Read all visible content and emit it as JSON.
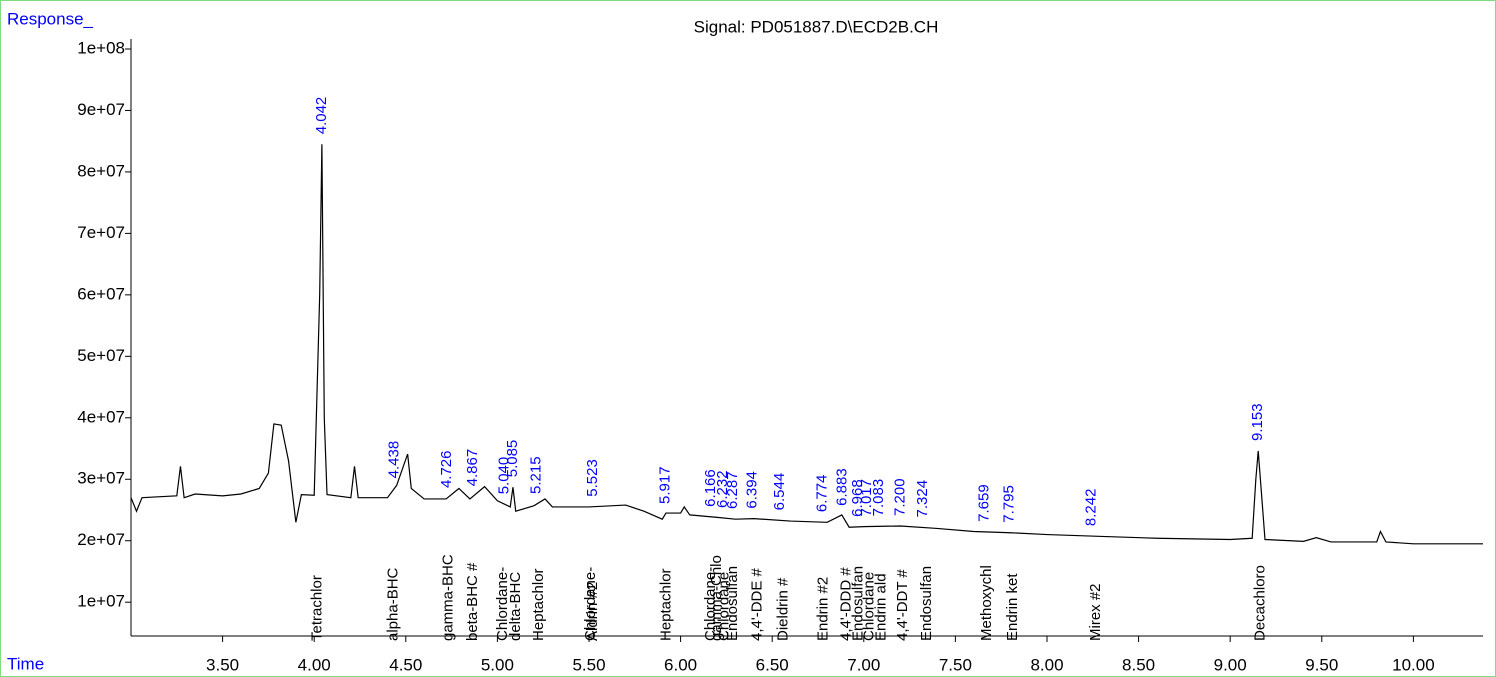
{
  "chart_data": {
    "type": "line",
    "title": "Signal: PD051887.D\\ECD2B.CH",
    "y_label": "Response_",
    "x_label": "Time",
    "xlim": [
      3.0,
      10.38
    ],
    "ylim": [
      4500000,
      101300000
    ],
    "xticks": [
      {
        "value": 3.5,
        "label": "3.50"
      },
      {
        "value": 4.0,
        "label": "4.00"
      },
      {
        "value": 4.5,
        "label": "4.50"
      },
      {
        "value": 5.0,
        "label": "5.00"
      },
      {
        "value": 5.5,
        "label": "5.50"
      },
      {
        "value": 6.0,
        "label": "6.00"
      },
      {
        "value": 6.5,
        "label": "6.50"
      },
      {
        "value": 7.0,
        "label": "7.00"
      },
      {
        "value": 7.5,
        "label": "7.50"
      },
      {
        "value": 8.0,
        "label": "8.00"
      },
      {
        "value": 8.5,
        "label": "8.50"
      },
      {
        "value": 9.0,
        "label": "9.00"
      },
      {
        "value": 9.5,
        "label": "9.50"
      },
      {
        "value": 10.0,
        "label": "10.00"
      }
    ],
    "yticks": [
      {
        "value": 10000000,
        "label": "1e+07"
      },
      {
        "value": 20000000,
        "label": "2e+07"
      },
      {
        "value": 30000000,
        "label": "3e+07"
      },
      {
        "value": 40000000,
        "label": "4e+07"
      },
      {
        "value": 50000000,
        "label": "5e+07"
      },
      {
        "value": 60000000,
        "label": "6e+07"
      },
      {
        "value": 70000000,
        "label": "7e+07"
      },
      {
        "value": 80000000,
        "label": "8e+07"
      },
      {
        "value": 90000000,
        "label": "9e+07"
      },
      {
        "value": 100000000,
        "label": "1e+08"
      }
    ],
    "series": [
      {
        "color": "#000000",
        "x": [
          3.0,
          3.03,
          3.06,
          3.25,
          3.27,
          3.29,
          3.35,
          3.5,
          3.6,
          3.7,
          3.75,
          3.78,
          3.82,
          3.86,
          3.88,
          3.9,
          3.93,
          4.0,
          4.03,
          4.042,
          4.055,
          4.07,
          4.2,
          4.22,
          4.24,
          4.4,
          4.45,
          4.51,
          4.53,
          4.6,
          4.72,
          4.79,
          4.85,
          4.93,
          5.0,
          5.07,
          5.085,
          5.1,
          5.2,
          5.26,
          5.3,
          5.5,
          5.7,
          5.8,
          5.9,
          5.92,
          6.0,
          6.02,
          6.05,
          6.2,
          6.3,
          6.4,
          6.6,
          6.8,
          6.88,
          6.92,
          7.0,
          7.2,
          7.4,
          7.6,
          7.8,
          8.0,
          8.3,
          8.6,
          9.0,
          9.12,
          9.14,
          9.153,
          9.17,
          9.19,
          9.4,
          9.47,
          9.55,
          9.8,
          9.82,
          9.85,
          10.0,
          10.38
        ],
        "values": [
          27000000,
          24800000,
          27000000,
          27300000,
          32100000,
          27000000,
          27600000,
          27300000,
          27600000,
          28500000,
          31000000,
          39000000,
          38800000,
          33000000,
          28000000,
          23000000,
          27500000,
          27400000,
          60000000,
          84500000,
          40000000,
          27500000,
          27000000,
          32100000,
          27000000,
          27000000,
          29000000,
          34100000,
          28500000,
          26800000,
          26800000,
          28500000,
          26800000,
          28800000,
          26500000,
          25500000,
          28700000,
          24800000,
          25700000,
          26800000,
          25500000,
          25500000,
          25800000,
          24800000,
          23500000,
          24500000,
          24500000,
          25500000,
          24200000,
          23800000,
          23500000,
          23600000,
          23200000,
          23000000,
          24200000,
          22200000,
          22300000,
          22400000,
          22000000,
          21500000,
          21300000,
          21000000,
          20700000,
          20400000,
          20200000,
          20400000,
          30000000,
          34600000,
          28000000,
          20200000,
          19900000,
          20500000,
          19800000,
          19800000,
          21500000,
          19800000,
          19500000,
          19500000
        ]
      }
    ],
    "peak_times": [
      {
        "value": 4.042,
        "label": "4.042"
      },
      {
        "value": 4.438,
        "label": "4.438"
      },
      {
        "value": 4.726,
        "label": "4.726"
      },
      {
        "value": 4.867,
        "label": "4.867"
      },
      {
        "value": 5.04,
        "label": "5.040"
      },
      {
        "value": 5.085,
        "label": "5.085"
      },
      {
        "value": 5.215,
        "label": "5.215"
      },
      {
        "value": 5.523,
        "label": "5.523"
      },
      {
        "value": 5.917,
        "label": "5.917"
      },
      {
        "value": 6.166,
        "label": "6.166"
      },
      {
        "value": 6.232,
        "label": "6.232"
      },
      {
        "value": 6.287,
        "label": "6.287"
      },
      {
        "value": 6.394,
        "label": "6.394"
      },
      {
        "value": 6.544,
        "label": "6.544"
      },
      {
        "value": 6.774,
        "label": "6.774"
      },
      {
        "value": 6.883,
        "label": "6.883"
      },
      {
        "value": 6.968,
        "label": "6.968"
      },
      {
        "value": 7.017,
        "label": "7.017"
      },
      {
        "value": 7.083,
        "label": "7.083"
      },
      {
        "value": 7.2,
        "label": "7.200"
      },
      {
        "value": 7.324,
        "label": "7.324"
      },
      {
        "value": 7.659,
        "label": "7.659"
      },
      {
        "value": 7.795,
        "label": "7.795"
      },
      {
        "value": 8.242,
        "label": "8.242"
      },
      {
        "value": 9.153,
        "label": "9.153"
      }
    ],
    "compounds": [
      {
        "value": 4.018,
        "label": "Tetrachlor"
      },
      {
        "value": 4.434,
        "label": "alpha-BHC"
      },
      {
        "value": 4.734,
        "label": "gamma-BHC"
      },
      {
        "value": 4.866,
        "label": "beta-BHC #"
      },
      {
        "value": 5.03,
        "label": "Chlordane-"
      },
      {
        "value": 5.101,
        "label": "delta-BHC"
      },
      {
        "value": 5.227,
        "label": "Heptachlor"
      },
      {
        "value": 5.51,
        "label": "Chlordane-"
      },
      {
        "value": 5.523,
        "label": "Aldrin #2"
      },
      {
        "value": 5.922,
        "label": "Heptachlor"
      },
      {
        "value": 6.166,
        "label": "Chlordane-"
      },
      {
        "value": 6.2,
        "label": "gamma-Chlo"
      },
      {
        "value": 6.24,
        "label": "Chlordane"
      },
      {
        "value": 6.287,
        "label": "Endosulfan"
      },
      {
        "value": 6.42,
        "label": "4,4'-DDE #"
      },
      {
        "value": 6.562,
        "label": "Dieldrin #"
      },
      {
        "value": 6.78,
        "label": "Endrin #2"
      },
      {
        "value": 6.906,
        "label": "4,4'-DDD #"
      },
      {
        "value": 6.972,
        "label": "Endosulfan"
      },
      {
        "value": 7.032,
        "label": "Chlordane"
      },
      {
        "value": 7.098,
        "label": "Endrin ald"
      },
      {
        "value": 7.213,
        "label": "4,4'-DDT #"
      },
      {
        "value": 7.344,
        "label": "Endosulfan"
      },
      {
        "value": 7.672,
        "label": "Methoxychl"
      },
      {
        "value": 7.815,
        "label": "Endrin ket"
      },
      {
        "value": 8.269,
        "label": "Mirex #2"
      },
      {
        "value": 9.166,
        "label": "Decachloro"
      }
    ]
  }
}
